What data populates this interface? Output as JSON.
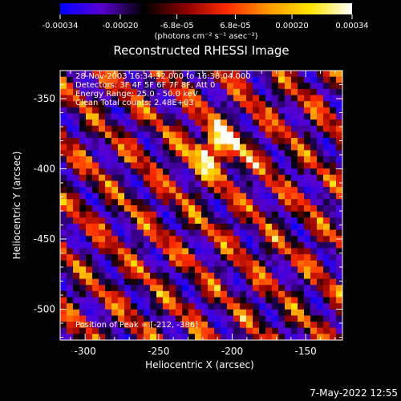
{
  "footer_timestamp": "7-May-2022 12:55",
  "colorbar": {
    "ticks": [
      "-0.00034",
      "-0.00020",
      "-6.8e-05",
      "6.8e-05",
      "0.00020",
      "0.00034"
    ],
    "range": [
      -0.00034,
      0.00034
    ],
    "unit_label": "(photons cm⁻² s⁻¹ asec⁻²)",
    "colors": [
      "#0000ff",
      "#5a00d0",
      "#000000",
      "#8a0000",
      "#ff2a00",
      "#ff9a00",
      "#ffe400",
      "#ffffff"
    ]
  },
  "chart_data": {
    "type": "heatmap",
    "title": "Reconstructed RHESSI Image",
    "xlabel": "Heliocentric X (arcsec)",
    "ylabel": "Heliocentric Y (arcsec)",
    "xlim": [
      -317,
      -125
    ],
    "ylim": [
      -522,
      -330
    ],
    "x_ticks": [
      -300,
      -250,
      -200,
      -150
    ],
    "y_ticks": [
      -350,
      -400,
      -450,
      -500
    ],
    "annotations": [
      "28-Nov-2003 16:34:32.000 to 16:38:04.000",
      "Detectors: 3F 4F 5F 6F 7F 8F, Att 0",
      "Energy Range: 25.0 - 50.0 keV",
      "Clean    Total counts: 2.48E+03"
    ],
    "peak_label": "Position of Peak = [-212, -386]",
    "peak_position": [
      -212,
      -386
    ],
    "value_range": [
      -0.00034,
      0.00034
    ],
    "grid": false
  }
}
